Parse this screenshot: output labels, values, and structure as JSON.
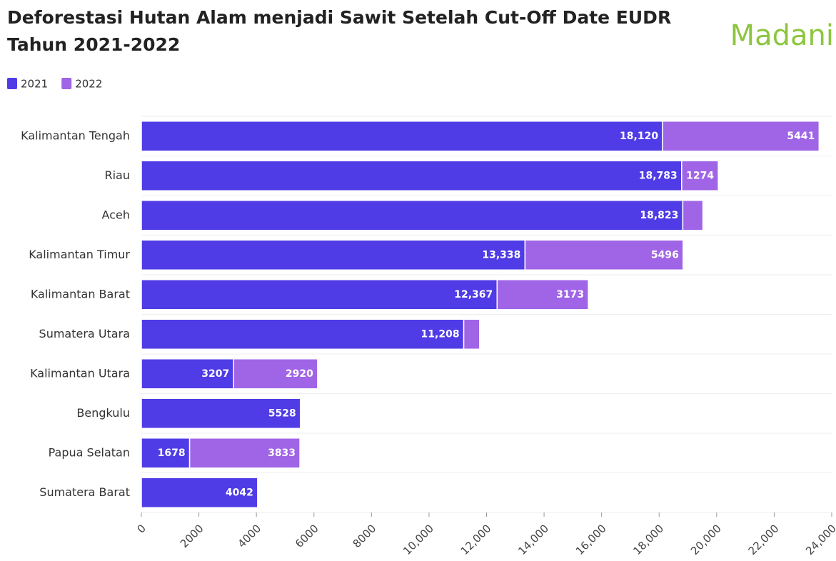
{
  "chart_data": {
    "type": "stacked-bar-horizontal",
    "title": "Deforestasi Hutan Alam menjadi Sawit Setelah Cut-Off Date EUDR",
    "subtitle": "Tahun 2021-2022",
    "logo": "Madani",
    "categories": [
      "Kalimantan Tengah",
      "Riau",
      "Aceh",
      "Kalimantan Timur",
      "Kalimantan Barat",
      "Sumatera Utara",
      "Kalimantan Utara",
      "Bengkulu",
      "Papua Selatan",
      "Sumatera Barat"
    ],
    "series": [
      {
        "name": "2021",
        "color": "#4f3ce6",
        "values": [
          18120,
          18783,
          18823,
          13338,
          12367,
          11208,
          3207,
          5528,
          1678,
          4042
        ],
        "value_labels": [
          "18,120",
          "18,783",
          "18,823",
          "13,338",
          "12,367",
          "11,208",
          "3207",
          "5528",
          "1678",
          "4042"
        ]
      },
      {
        "name": "2022",
        "color": "#a064e6",
        "values": [
          5441,
          1274,
          700,
          5496,
          3173,
          550,
          2920,
          null,
          3833,
          null
        ],
        "value_labels": [
          "5441",
          "1274",
          null,
          "5496",
          "3173",
          null,
          "2920",
          null,
          "3833",
          null
        ]
      }
    ],
    "xlim": [
      0,
      24000
    ],
    "xticks": [
      0,
      2000,
      4000,
      6000,
      8000,
      {
        "value": 10000,
        "label": "10,000"
      },
      {
        "value": 12000,
        "label": "12,000"
      },
      {
        "value": 14000,
        "label": "14,000"
      },
      {
        "value": 16000,
        "label": "16,000"
      },
      {
        "value": 18000,
        "label": "18,000"
      },
      {
        "value": 20000,
        "label": "20,000"
      },
      {
        "value": 22000,
        "label": "22,000"
      },
      {
        "value": 24000,
        "label": "24,000"
      }
    ],
    "legend": "top-left"
  }
}
